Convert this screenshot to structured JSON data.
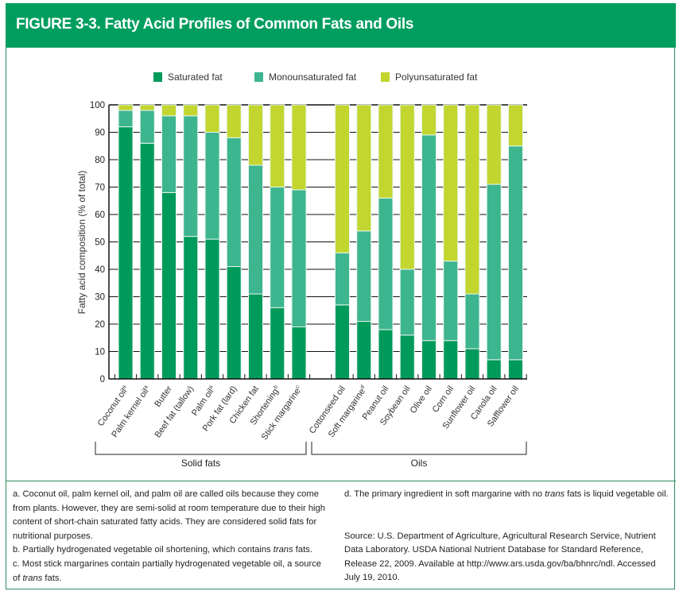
{
  "figure": {
    "title": "FIGURE 3-3. Fatty Acid Profiles of Common Fats and Oils"
  },
  "chart_data": {
    "type": "bar",
    "stacked": true,
    "ylabel": "Fatty acid composition (% of total)",
    "ylim": [
      0,
      100
    ],
    "yticks": [
      "0",
      "10",
      "20",
      "30",
      "40",
      "50",
      "60",
      "70",
      "80",
      "90",
      "100"
    ],
    "grid": true,
    "legend_position": "top",
    "categories": [
      "Coconut oil",
      "Palm kernel oil",
      "Butter",
      "Beef fat (tallow)",
      "Palm oil",
      "Pork fat (lard)",
      "Chicken fat",
      "Shortening",
      "Stick margarine",
      "Cottonseed oil",
      "Soft margarine",
      "Peanut oil",
      "Soybean oil",
      "Olive oil",
      "Corn oil",
      "Sunflower oil",
      "Canola oil",
      "Safflower oil"
    ],
    "category_superscripts": [
      "a",
      "a",
      "",
      "",
      "a",
      "",
      "",
      "b",
      "c",
      "",
      "d",
      "",
      "",
      "",
      "",
      "",
      "",
      ""
    ],
    "groups": [
      {
        "label": "Solid fats",
        "categories": [
          0,
          8
        ]
      },
      {
        "label": "Oils",
        "categories": [
          9,
          17
        ]
      }
    ],
    "series": [
      {
        "name": "Saturated fat",
        "color": "#009a5b",
        "values": [
          92,
          86,
          68,
          52,
          51,
          41,
          31,
          26,
          19,
          27,
          21,
          18,
          16,
          14,
          14,
          11,
          7,
          7
        ]
      },
      {
        "name": "Monounsaturated fat",
        "color": "#3db58f",
        "values": [
          6,
          12,
          28,
          44,
          39,
          47,
          47,
          44,
          50,
          19,
          33,
          48,
          24,
          75,
          29,
          20,
          64,
          78
        ]
      },
      {
        "name": "Polyunsaturated fat",
        "color": "#c2d62f",
        "values": [
          2,
          2,
          4,
          4,
          10,
          12,
          22,
          30,
          31,
          54,
          46,
          34,
          60,
          11,
          57,
          69,
          29,
          15
        ]
      }
    ]
  },
  "footnotes": {
    "a": "a. Coconut oil, palm kernel oil, and palm oil are called oils because they come from plants. However, they are semi-solid at room temperature due to their high content of short-chain saturated fatty acids. They are considered solid fats for nutritional purposes.",
    "b_pre": "b. Partially hydrogenated vegetable oil shortening, which contains ",
    "b_em": "trans",
    "b_post": " fats.",
    "c_pre": "c. Most stick margarines contain partially hydrogenated vegetable oil, a source of ",
    "c_em": "trans",
    "c_post": " fats.",
    "d_pre": "d. The primary ingredient in soft margarine with no ",
    "d_em": "trans",
    "d_post": " fats is liquid vegetable oil.",
    "source": "Source: U.S. Department of Agriculture, Agricultural Research Service, Nutrient Data Laboratory. USDA National Nutrient Database for Standard Reference, Release 22, 2009. Available at http://www.ars.usda.gov/ba/bhnrc/ndl. Accessed July 19, 2010."
  }
}
